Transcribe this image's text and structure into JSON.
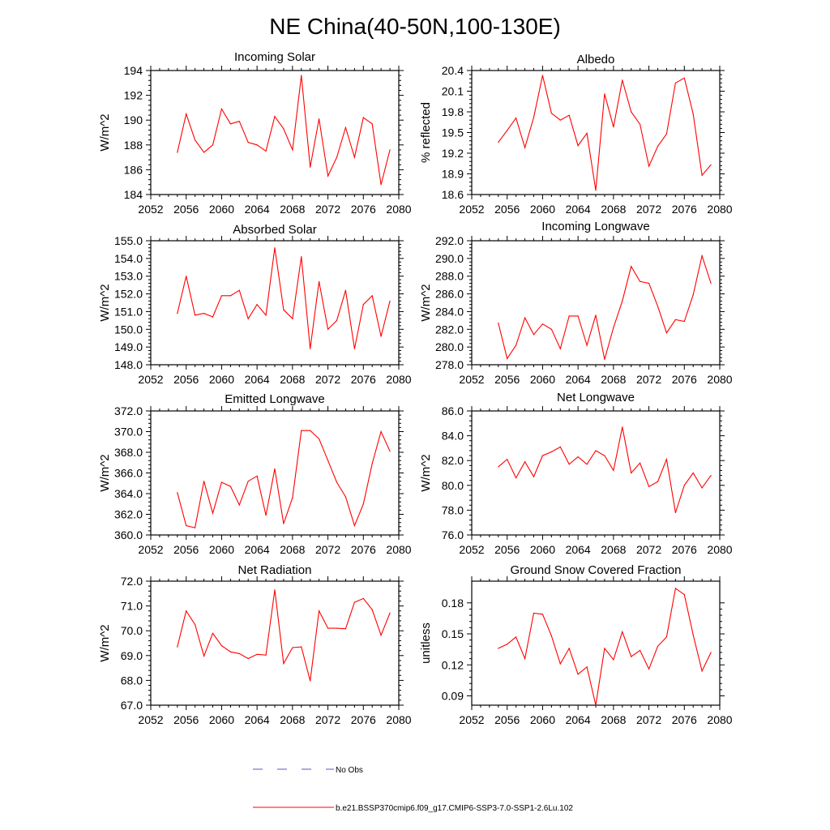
{
  "figure": {
    "title": "NE China(40-50N,100-130E)",
    "line_color": "#ff0000",
    "obs_color": "#5555cc"
  },
  "legend": {
    "obs_label": "No Obs",
    "model_label": "b.e21.BSSP370cmip6.f09_g17.CMIP6-SSP3-7.0-SSP1-2.6Lu.102"
  },
  "chart_data": [
    {
      "type": "line",
      "title": "Incoming Solar",
      "ylabel": "W/m^2",
      "xlim": [
        2052,
        2080
      ],
      "x_ticks": [
        "2052",
        "2056",
        "2060",
        "2064",
        "2068",
        "2072",
        "2076",
        "2080"
      ],
      "ylim": [
        184,
        194
      ],
      "y_ticks": [
        "184",
        "186",
        "188",
        "190",
        "192",
        "194"
      ],
      "series": [
        {
          "x": [
            2055,
            2056,
            2057,
            2058,
            2059,
            2060,
            2061,
            2062,
            2063,
            2064,
            2065,
            2066,
            2067,
            2068,
            2069,
            2070,
            2071,
            2072,
            2073,
            2074,
            2075,
            2076,
            2077,
            2078,
            2079
          ],
          "values": [
            187.4,
            190.5,
            188.4,
            187.4,
            188.0,
            190.9,
            189.7,
            189.9,
            188.2,
            188.0,
            187.5,
            190.3,
            189.3,
            187.6,
            193.6,
            186.2,
            190.1,
            185.5,
            187.0,
            189.4,
            187.0,
            190.2,
            189.7,
            184.8,
            187.6
          ]
        }
      ]
    },
    {
      "type": "line",
      "title": "Albedo",
      "ylabel": "% reflected",
      "xlim": [
        2052,
        2080
      ],
      "x_ticks": [
        "2052",
        "2056",
        "2060",
        "2064",
        "2068",
        "2072",
        "2076",
        "2080"
      ],
      "ylim": [
        18.6,
        20.4
      ],
      "y_ticks": [
        "18.6",
        "18.9",
        "19.2",
        "19.5",
        "19.8",
        "20.1",
        "20.4"
      ],
      "series": [
        {
          "x": [
            2055,
            2056,
            2057,
            2058,
            2059,
            2060,
            2061,
            2062,
            2063,
            2064,
            2065,
            2066,
            2067,
            2068,
            2069,
            2070,
            2071,
            2072,
            2073,
            2074,
            2075,
            2076,
            2077,
            2078,
            2079
          ],
          "values": [
            19.36,
            19.53,
            19.71,
            19.28,
            19.72,
            20.33,
            19.78,
            19.68,
            19.75,
            19.31,
            19.49,
            18.66,
            20.06,
            19.58,
            20.26,
            19.8,
            19.62,
            19.01,
            19.3,
            19.48,
            20.22,
            20.29,
            19.77,
            18.88,
            19.03
          ]
        }
      ]
    },
    {
      "type": "line",
      "title": "Absorbed Solar",
      "ylabel": "W/m^2",
      "xlim": [
        2052,
        2080
      ],
      "x_ticks": [
        "2052",
        "2056",
        "2060",
        "2064",
        "2068",
        "2072",
        "2076",
        "2080"
      ],
      "ylim": [
        148.0,
        155.0
      ],
      "y_ticks": [
        "148.0",
        "149.0",
        "150.0",
        "151.0",
        "152.0",
        "153.0",
        "154.0",
        "155.0"
      ],
      "series": [
        {
          "x": [
            2055,
            2056,
            2057,
            2058,
            2059,
            2060,
            2061,
            2062,
            2063,
            2064,
            2065,
            2066,
            2067,
            2068,
            2069,
            2070,
            2071,
            2072,
            2073,
            2074,
            2075,
            2076,
            2077,
            2078,
            2079
          ],
          "values": [
            150.9,
            153.0,
            150.8,
            150.9,
            150.7,
            151.9,
            151.9,
            152.2,
            150.6,
            151.4,
            150.8,
            154.6,
            151.1,
            150.6,
            154.1,
            148.9,
            152.7,
            150.0,
            150.5,
            152.2,
            148.9,
            151.4,
            151.9,
            149.6,
            151.6
          ]
        }
      ]
    },
    {
      "type": "line",
      "title": "Incoming Longwave",
      "ylabel": "W/m^2",
      "xlim": [
        2052,
        2080
      ],
      "x_ticks": [
        "2052",
        "2056",
        "2060",
        "2064",
        "2068",
        "2072",
        "2076",
        "2080"
      ],
      "ylim": [
        278.0,
        292.0
      ],
      "y_ticks": [
        "278.0",
        "280.0",
        "282.0",
        "284.0",
        "286.0",
        "288.0",
        "290.0",
        "292.0"
      ],
      "series": [
        {
          "x": [
            2055,
            2056,
            2057,
            2058,
            2059,
            2060,
            2061,
            2062,
            2063,
            2064,
            2065,
            2066,
            2067,
            2068,
            2069,
            2070,
            2071,
            2072,
            2073,
            2074,
            2075,
            2076,
            2077,
            2078,
            2079
          ],
          "values": [
            282.7,
            278.7,
            280.2,
            283.3,
            281.4,
            282.6,
            282.0,
            279.8,
            283.5,
            283.5,
            280.2,
            283.6,
            278.6,
            282.2,
            285.2,
            289.1,
            287.4,
            287.2,
            284.6,
            281.6,
            283.1,
            282.9,
            285.9,
            290.3,
            287.2
          ]
        }
      ]
    },
    {
      "type": "line",
      "title": "Emitted Longwave",
      "ylabel": "W/m^2",
      "xlim": [
        2052,
        2080
      ],
      "x_ticks": [
        "2052",
        "2056",
        "2060",
        "2064",
        "2068",
        "2072",
        "2076",
        "2080"
      ],
      "ylim": [
        360.0,
        372.0
      ],
      "y_ticks": [
        "360.0",
        "362.0",
        "364.0",
        "366.0",
        "368.0",
        "370.0",
        "372.0"
      ],
      "series": [
        {
          "x": [
            2055,
            2056,
            2057,
            2058,
            2059,
            2060,
            2061,
            2062,
            2063,
            2064,
            2065,
            2066,
            2067,
            2068,
            2069,
            2070,
            2071,
            2072,
            2073,
            2074,
            2075,
            2076,
            2077,
            2078,
            2079
          ],
          "values": [
            364.1,
            360.9,
            360.7,
            365.2,
            362.1,
            365.1,
            364.7,
            362.9,
            365.2,
            365.7,
            361.9,
            366.4,
            361.1,
            363.6,
            370.1,
            370.1,
            369.3,
            367.2,
            365.1,
            363.7,
            360.9,
            363.0,
            366.9,
            370.0,
            368.1
          ]
        }
      ]
    },
    {
      "type": "line",
      "title": "Net Longwave",
      "ylabel": "W/m^2",
      "xlim": [
        2052,
        2080
      ],
      "x_ticks": [
        "2052",
        "2056",
        "2060",
        "2064",
        "2068",
        "2072",
        "2076",
        "2080"
      ],
      "ylim": [
        76.0,
        86.0
      ],
      "y_ticks": [
        "76.0",
        "78.0",
        "80.0",
        "82.0",
        "84.0",
        "86.0"
      ],
      "series": [
        {
          "x": [
            2055,
            2056,
            2057,
            2058,
            2059,
            2060,
            2061,
            2062,
            2063,
            2064,
            2065,
            2066,
            2067,
            2068,
            2069,
            2070,
            2071,
            2072,
            2073,
            2074,
            2075,
            2076,
            2077,
            2078,
            2079
          ],
          "values": [
            81.5,
            82.1,
            80.6,
            81.9,
            80.7,
            82.4,
            82.7,
            83.1,
            81.7,
            82.3,
            81.7,
            82.8,
            82.4,
            81.2,
            84.7,
            81.0,
            81.8,
            79.9,
            80.3,
            82.1,
            77.8,
            80.0,
            81.0,
            79.8,
            80.8
          ]
        }
      ]
    },
    {
      "type": "line",
      "title": "Net Radiation",
      "ylabel": "W/m^2",
      "xlim": [
        2052,
        2080
      ],
      "x_ticks": [
        "2052",
        "2056",
        "2060",
        "2064",
        "2068",
        "2072",
        "2076",
        "2080"
      ],
      "ylim": [
        67.0,
        72.0
      ],
      "y_ticks": [
        "67.0",
        "68.0",
        "69.0",
        "70.0",
        "71.0",
        "72.0"
      ],
      "series": [
        {
          "x": [
            2055,
            2056,
            2057,
            2058,
            2059,
            2060,
            2061,
            2062,
            2063,
            2064,
            2065,
            2066,
            2067,
            2068,
            2069,
            2070,
            2071,
            2072,
            2073,
            2074,
            2075,
            2076,
            2077,
            2078,
            2079
          ],
          "values": [
            69.35,
            70.8,
            70.25,
            68.98,
            69.9,
            69.4,
            69.15,
            69.08,
            68.88,
            69.05,
            69.02,
            71.65,
            68.68,
            69.32,
            69.35,
            67.98,
            70.8,
            70.1,
            70.1,
            70.08,
            71.15,
            71.3,
            70.85,
            69.82,
            70.72
          ]
        }
      ]
    },
    {
      "type": "line",
      "title": "Ground Snow Covered Fraction",
      "ylabel": "unitless",
      "xlim": [
        2052,
        2080
      ],
      "x_ticks": [
        "2052",
        "2056",
        "2060",
        "2064",
        "2068",
        "2072",
        "2076",
        "2080"
      ],
      "ylim": [
        0.081,
        0.201
      ],
      "y_ticks": [
        "0.09",
        "0.12",
        "0.15",
        "0.18"
      ],
      "series": [
        {
          "x": [
            2055,
            2056,
            2057,
            2058,
            2059,
            2060,
            2061,
            2062,
            2063,
            2064,
            2065,
            2066,
            2067,
            2068,
            2069,
            2070,
            2071,
            2072,
            2073,
            2074,
            2075,
            2076,
            2077,
            2078,
            2079
          ],
          "values": [
            0.136,
            0.14,
            0.147,
            0.126,
            0.17,
            0.169,
            0.148,
            0.121,
            0.136,
            0.111,
            0.118,
            0.081,
            0.136,
            0.125,
            0.152,
            0.128,
            0.134,
            0.116,
            0.138,
            0.147,
            0.194,
            0.188,
            0.149,
            0.114,
            0.132
          ]
        }
      ]
    }
  ]
}
